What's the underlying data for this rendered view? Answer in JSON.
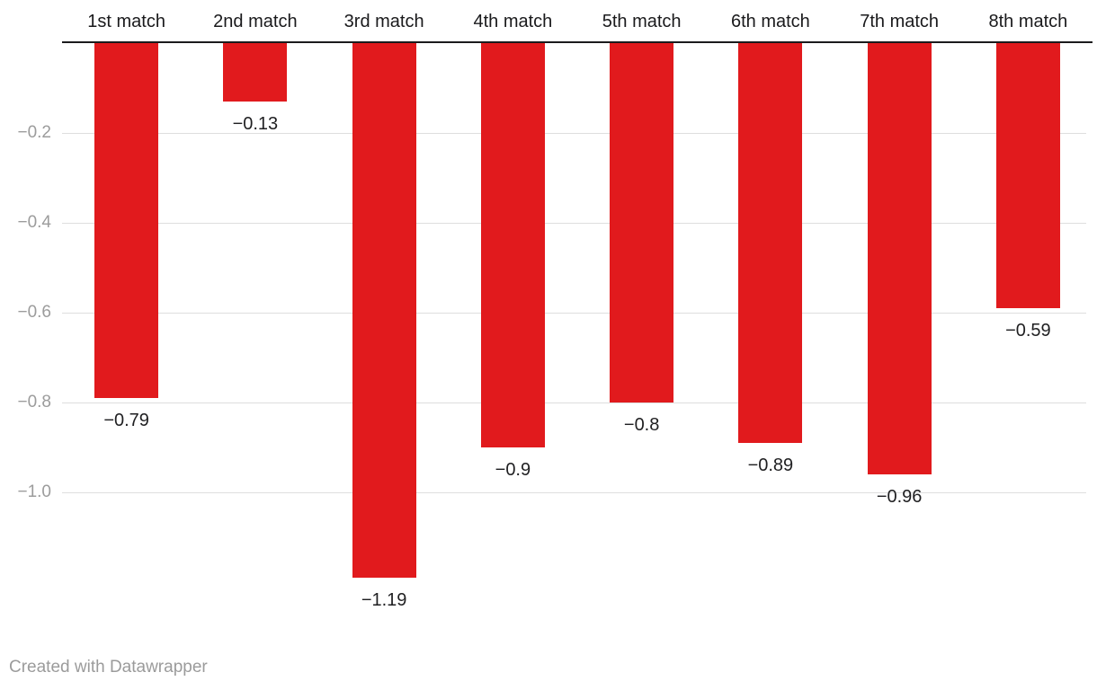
{
  "chart_data": {
    "type": "bar",
    "title": "",
    "categories": [
      "1st match",
      "2nd match",
      "3rd match",
      "4th match",
      "5th match",
      "6th match",
      "7th match",
      "8th match"
    ],
    "values": [
      -0.79,
      -0.13,
      -1.19,
      -0.9,
      -0.8,
      -0.89,
      -0.96,
      -0.59
    ],
    "value_labels": [
      "−0.79",
      "−0.13",
      "−1.19",
      "−0.9",
      "−0.8",
      "−0.89",
      "−0.96",
      "−0.59"
    ],
    "yticks": [
      -0.2,
      -0.4,
      -0.6,
      -0.8,
      -1.0
    ],
    "ytick_labels": [
      "−0.2",
      "−0.4",
      "−0.6",
      "−0.8",
      "−1.0"
    ],
    "ylim": [
      -1.19,
      0
    ],
    "xlabel": "",
    "ylabel": "",
    "grid": true,
    "legend_position": "none",
    "bar_color": "#e11a1d",
    "category_labels_position": "top"
  },
  "colors": {
    "bar": "#e11a1d",
    "zero_line": "#1b1b1d",
    "gridline": "#dedede",
    "ytick_text": "#9c9c9c",
    "header_text": "#1a1a1c",
    "value_text": "#1f1f21",
    "footer_text": "#9b9b9b",
    "background": "#ffffff"
  },
  "footer": {
    "text": "Created with Datawrapper"
  }
}
